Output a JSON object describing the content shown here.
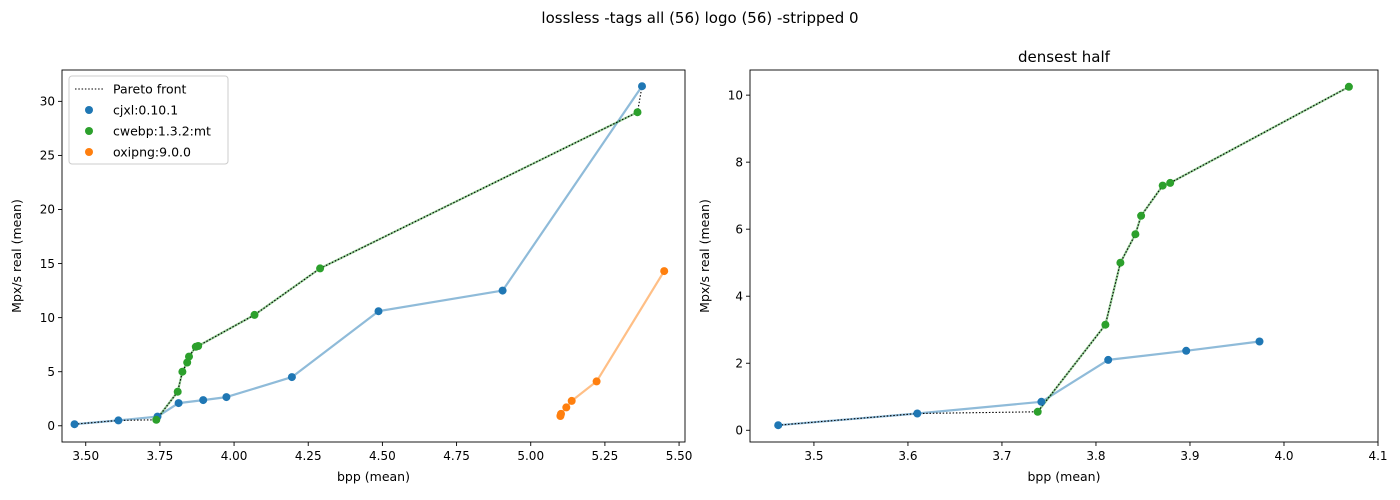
{
  "suptitle": "lossless -tags all (56) logo (56) -stripped 0",
  "chart_data": [
    {
      "type": "line",
      "title": "",
      "xlabel": "bpp (mean)",
      "ylabel": "Mpx/s real (mean)",
      "xlim": [
        3.42,
        5.52
      ],
      "ylim": [
        -1.5,
        32.9
      ],
      "xticks": [
        "3.50",
        "3.75",
        "4.00",
        "4.25",
        "4.50",
        "4.75",
        "5.00",
        "5.25",
        "5.50"
      ],
      "yticks": [
        "0",
        "5",
        "10",
        "15",
        "20",
        "25",
        "30"
      ],
      "grid": false,
      "legend": {
        "placement": "top-left",
        "entries": [
          "Pareto front",
          "cjxl:0.10.1",
          "cwebp:1.3.2:mt",
          "oxipng:9.0.0"
        ]
      },
      "series": [
        {
          "name": "cjxl:0.10.1",
          "color": "#1f77b4",
          "x": [
            3.462,
            3.61,
            3.742,
            3.813,
            3.896,
            3.974,
            4.195,
            4.487,
            4.905,
            5.375
          ],
          "y": [
            0.15,
            0.5,
            0.85,
            2.1,
            2.37,
            2.65,
            4.5,
            10.6,
            12.5,
            31.4
          ]
        },
        {
          "name": "cwebp:1.3.2:mt",
          "color": "#2ca02c",
          "x": [
            3.738,
            3.81,
            3.826,
            3.842,
            3.848,
            3.871,
            3.879,
            4.069,
            4.29,
            5.36
          ],
          "y": [
            0.55,
            3.15,
            5.0,
            5.85,
            6.4,
            7.3,
            7.38,
            10.25,
            14.55,
            29.0
          ]
        },
        {
          "name": "oxipng:9.0.0",
          "color": "#ff7f0e",
          "x": [
            5.1,
            5.102,
            5.12,
            5.138,
            5.222,
            5.45
          ],
          "y": [
            0.9,
            1.1,
            1.7,
            2.3,
            4.1,
            14.3
          ]
        }
      ],
      "pareto": {
        "name": "Pareto front",
        "x": [
          3.462,
          3.61,
          3.738,
          3.81,
          3.826,
          3.842,
          3.848,
          3.871,
          3.879,
          4.069,
          4.29,
          5.36,
          5.375
        ],
        "y": [
          0.15,
          0.5,
          0.55,
          3.15,
          5.0,
          5.85,
          6.4,
          7.3,
          7.38,
          10.25,
          14.55,
          29.0,
          31.4
        ]
      }
    },
    {
      "type": "line",
      "title": "densest half",
      "xlabel": "bpp (mean)",
      "ylabel": "Mpx/s real (mean)",
      "xlim": [
        3.432,
        4.1
      ],
      "ylim": [
        -0.35,
        10.75
      ],
      "xticks": [
        "3.5",
        "3.6",
        "3.7",
        "3.8",
        "3.9",
        "4.0",
        "4.1"
      ],
      "yticks": [
        "0",
        "2",
        "4",
        "6",
        "8",
        "10"
      ],
      "grid": false,
      "series": [
        {
          "name": "cjxl:0.10.1",
          "color": "#1f77b4",
          "x": [
            3.462,
            3.61,
            3.742,
            3.813,
            3.896,
            3.974
          ],
          "y": [
            0.15,
            0.5,
            0.85,
            2.1,
            2.37,
            2.65
          ]
        },
        {
          "name": "cwebp:1.3.2:mt",
          "color": "#2ca02c",
          "x": [
            3.738,
            3.81,
            3.826,
            3.842,
            3.848,
            3.871,
            3.879,
            4.069
          ],
          "y": [
            0.55,
            3.15,
            5.0,
            5.85,
            6.4,
            7.3,
            7.38,
            10.25
          ]
        }
      ],
      "pareto": {
        "name": "Pareto front",
        "x": [
          3.462,
          3.61,
          3.738,
          3.81,
          3.826,
          3.842,
          3.848,
          3.871,
          3.879,
          4.069
        ],
        "y": [
          0.15,
          0.5,
          0.55,
          3.15,
          5.0,
          5.85,
          6.4,
          7.3,
          7.38,
          10.25
        ]
      }
    }
  ]
}
